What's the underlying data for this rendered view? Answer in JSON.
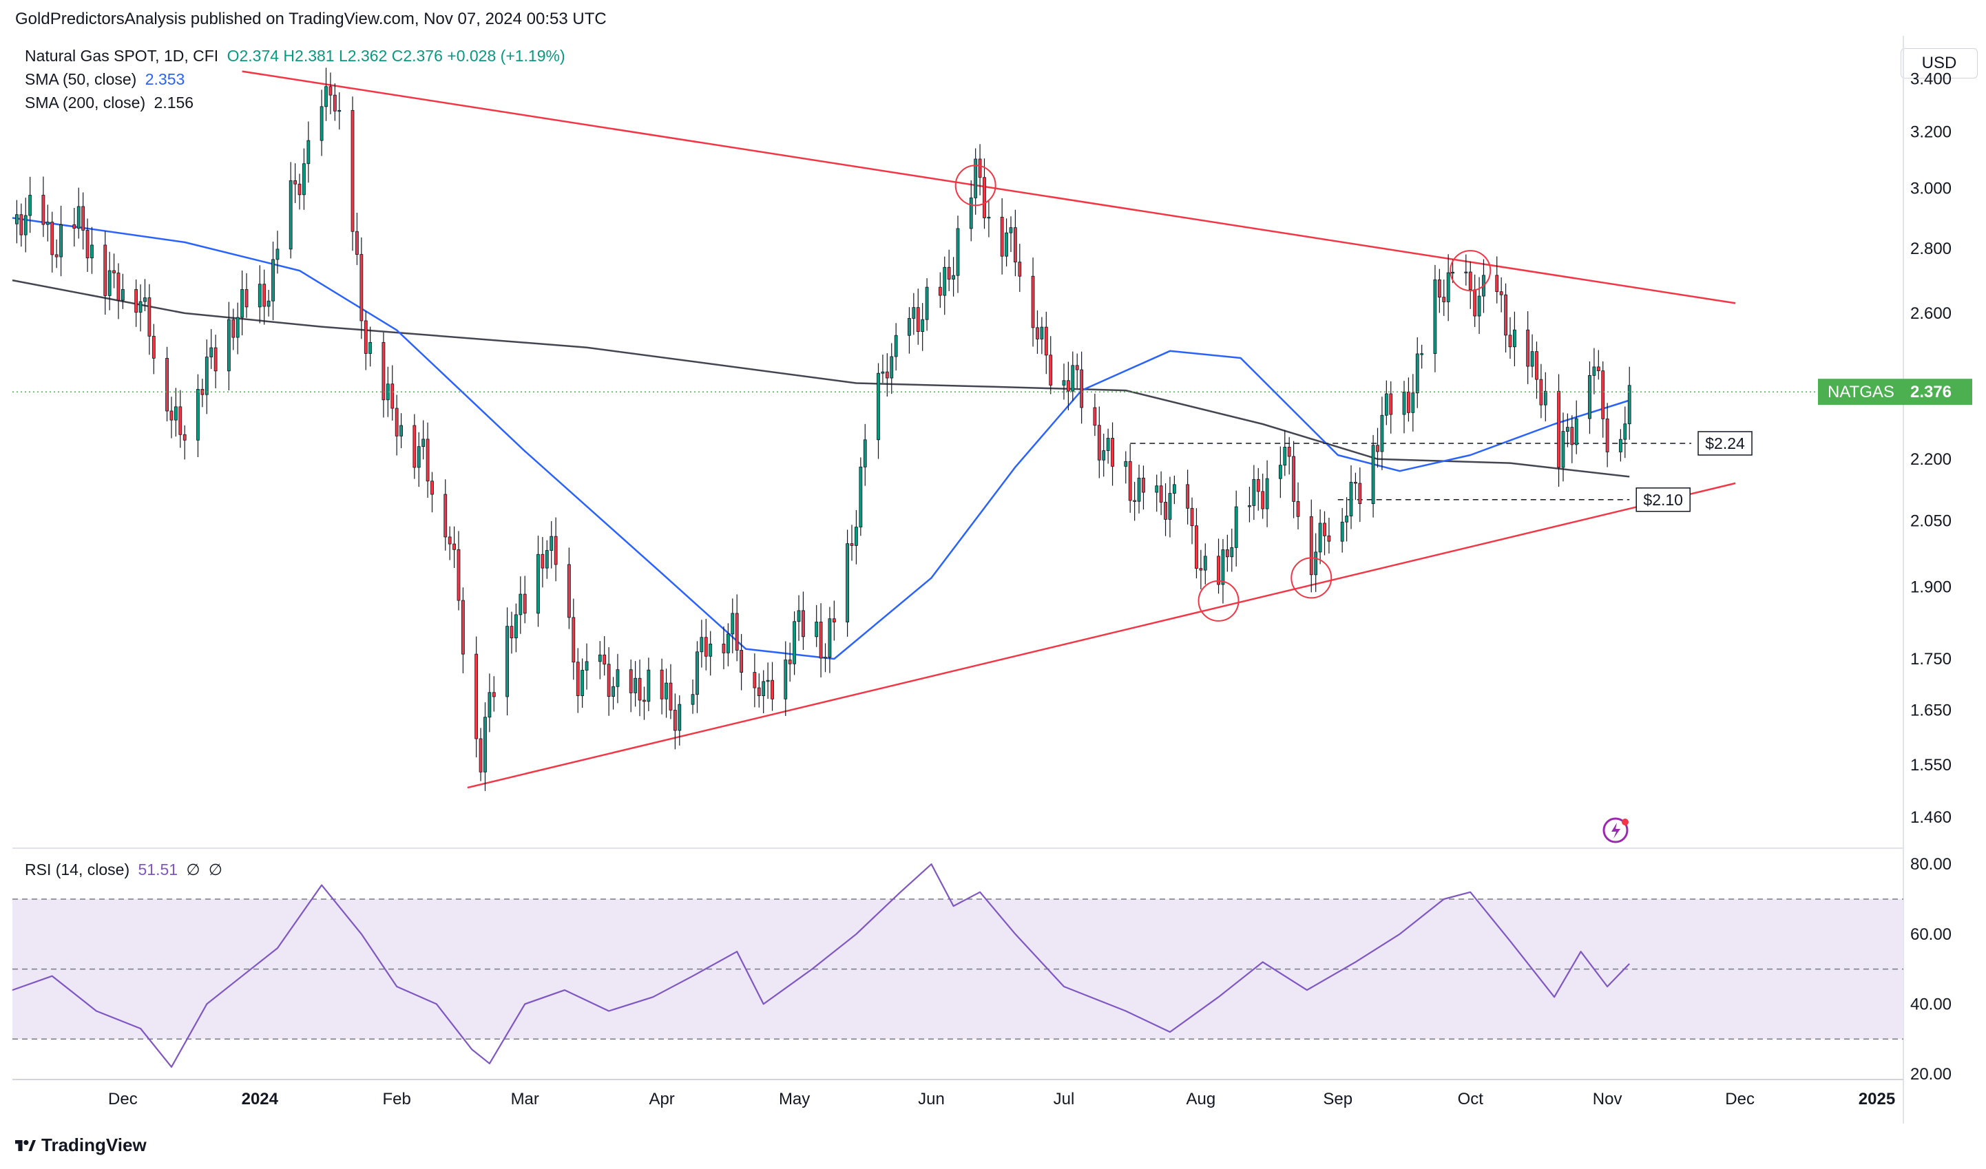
{
  "header": {
    "publisher": "GoldPredictorsAnalysis published on TradingView.com, Nov 07, 2024 00:53 UTC",
    "symbol": "Natural Gas SPOT, 1D, CFI",
    "ohlc": "O2.374  H2.381  L2.362  C2.376  +0.028 (+1.19%)",
    "sma50_label": "SMA (50, close)",
    "sma50_value": "2.353",
    "sma200_label": "SMA (200, close)",
    "sma200_value": "2.156",
    "currency": "USD"
  },
  "footer": {
    "brand": "TradingView"
  },
  "colors": {
    "up": "#089981",
    "down": "#f23645",
    "sma50": "#2962ff",
    "sma200": "#434651",
    "trend": "#f23645",
    "rsi": "#7e57c2",
    "rsi_band": "#ede7f6",
    "badge": "#4caf50"
  },
  "chart_data": [
    {
      "type": "candlestick",
      "title": "Natural Gas SPOT, 1D, CFI",
      "ylabel": "USD",
      "y_scale": "log",
      "ylim": [
        1.42,
        3.55
      ],
      "y_ticks": [
        3.4,
        3.2,
        3.0,
        2.8,
        2.6,
        2.2,
        2.05,
        1.9,
        1.75,
        1.65,
        1.55,
        1.46
      ],
      "y_tick_labels": [
        "3.400",
        "3.200",
        "3.000",
        "2.800",
        "2.600",
        "2.200",
        "2.050",
        "1.900",
        "1.750",
        "1.650",
        "1.550",
        "1.460"
      ],
      "x_tick_labels": [
        "Dec",
        "2024",
        "Feb",
        "Mar",
        "Apr",
        "May",
        "Jun",
        "Jul",
        "Aug",
        "Sep",
        "Oct",
        "Nov",
        "Dec",
        "2025"
      ],
      "x_tick_dates": [
        "2023-12-01",
        "2024-01-01",
        "2024-02-01",
        "2024-03-01",
        "2024-04-01",
        "2024-05-01",
        "2024-06-01",
        "2024-07-01",
        "2024-08-01",
        "2024-09-01",
        "2024-10-01",
        "2024-11-01",
        "2024-12-01",
        "2025-01-01"
      ],
      "x_range": [
        "2023-11-06",
        "2025-01-07"
      ],
      "price_points": [
        [
          "2023-11-06",
          2.88
        ],
        [
          "2023-11-20",
          2.85
        ],
        [
          "2023-12-01",
          2.68
        ],
        [
          "2023-12-08",
          2.55
        ],
        [
          "2023-12-14",
          2.22
        ],
        [
          "2023-12-20",
          2.48
        ],
        [
          "2023-12-27",
          2.56
        ],
        [
          "2024-01-05",
          2.76
        ],
        [
          "2024-01-11",
          3.08
        ],
        [
          "2024-01-17",
          3.39
        ],
        [
          "2024-01-24",
          2.62
        ],
        [
          "2024-01-31",
          2.28
        ],
        [
          "2024-02-07",
          2.24
        ],
        [
          "2024-02-13",
          1.98
        ],
        [
          "2024-02-20",
          1.58
        ],
        [
          "2024-02-27",
          1.83
        ],
        [
          "2024-03-06",
          1.98
        ],
        [
          "2024-03-13",
          1.74
        ],
        [
          "2024-03-20",
          1.69
        ],
        [
          "2024-03-27",
          1.7
        ],
        [
          "2024-04-03",
          1.65
        ],
        [
          "2024-04-10",
          1.75
        ],
        [
          "2024-04-17",
          1.83
        ],
        [
          "2024-04-24",
          1.65
        ],
        [
          "2024-05-01",
          1.83
        ],
        [
          "2024-05-08",
          1.76
        ],
        [
          "2024-05-15",
          2.06
        ],
        [
          "2024-05-22",
          2.5
        ],
        [
          "2024-05-29",
          2.55
        ],
        [
          "2024-06-05",
          2.75
        ],
        [
          "2024-06-11",
          3.01
        ],
        [
          "2024-06-18",
          2.85
        ],
        [
          "2024-06-25",
          2.55
        ],
        [
          "2024-07-02",
          2.4
        ],
        [
          "2024-07-09",
          2.28
        ],
        [
          "2024-07-16",
          2.1
        ],
        [
          "2024-07-23",
          2.12
        ],
        [
          "2024-07-30",
          2.01
        ],
        [
          "2024-08-05",
          1.9
        ],
        [
          "2024-08-12",
          2.12
        ],
        [
          "2024-08-19",
          2.2
        ],
        [
          "2024-08-26",
          2.0
        ],
        [
          "2024-09-02",
          2.05
        ],
        [
          "2024-09-09",
          2.25
        ],
        [
          "2024-09-16",
          2.35
        ],
        [
          "2024-09-23",
          2.62
        ],
        [
          "2024-09-30",
          2.71
        ],
        [
          "2024-10-07",
          2.6
        ],
        [
          "2024-10-14",
          2.48
        ],
        [
          "2024-10-21",
          2.21
        ],
        [
          "2024-10-28",
          2.46
        ],
        [
          "2024-11-01",
          2.24
        ],
        [
          "2024-11-06",
          2.376
        ]
      ],
      "sma50_points": [
        [
          "2023-11-06",
          2.9
        ],
        [
          "2023-12-15",
          2.82
        ],
        [
          "2024-01-10",
          2.73
        ],
        [
          "2024-02-01",
          2.55
        ],
        [
          "2024-03-01",
          2.22
        ],
        [
          "2024-04-01",
          1.93
        ],
        [
          "2024-04-20",
          1.77
        ],
        [
          "2024-05-10",
          1.75
        ],
        [
          "2024-06-01",
          1.92
        ],
        [
          "2024-06-20",
          2.18
        ],
        [
          "2024-07-05",
          2.38
        ],
        [
          "2024-07-25",
          2.49
        ],
        [
          "2024-08-10",
          2.47
        ],
        [
          "2024-09-01",
          2.21
        ],
        [
          "2024-09-15",
          2.17
        ],
        [
          "2024-10-01",
          2.21
        ],
        [
          "2024-10-20",
          2.29
        ],
        [
          "2024-11-06",
          2.353
        ]
      ],
      "sma200_points": [
        [
          "2023-11-06",
          2.7
        ],
        [
          "2023-12-15",
          2.6
        ],
        [
          "2024-01-15",
          2.56
        ],
        [
          "2024-03-15",
          2.5
        ],
        [
          "2024-05-15",
          2.4
        ],
        [
          "2024-06-15",
          2.39
        ],
        [
          "2024-07-15",
          2.38
        ],
        [
          "2024-08-15",
          2.29
        ],
        [
          "2024-09-10",
          2.2
        ],
        [
          "2024-10-10",
          2.19
        ],
        [
          "2024-11-06",
          2.156
        ]
      ],
      "trendlines": [
        {
          "name": "descending-resistance",
          "from": [
            "2023-12-28",
            3.43
          ],
          "to": [
            "2024-11-30",
            2.63
          ]
        },
        {
          "name": "ascending-support",
          "from": [
            "2024-02-17",
            1.51
          ],
          "to": [
            "2024-11-30",
            2.14
          ]
        }
      ],
      "levels": [
        {
          "label": "$2.24",
          "value": 2.24,
          "from": "2024-07-16",
          "to": "2024-11-20"
        },
        {
          "label": "$2.10",
          "value": 2.1,
          "from": "2024-09-01",
          "to": "2024-11-06"
        }
      ],
      "markers": [
        {
          "date": "2024-06-11",
          "price": 3.01
        },
        {
          "date": "2024-10-01",
          "price": 2.73
        },
        {
          "date": "2024-08-05",
          "price": 1.87
        },
        {
          "date": "2024-08-26",
          "price": 1.92
        }
      ],
      "last_price": {
        "label": "NATGAS",
        "value": 2.376
      }
    },
    {
      "type": "line",
      "title": "RSI (14, close)",
      "value_label": "51.51",
      "extra_labels": [
        "∅",
        "∅"
      ],
      "ylim": [
        20,
        82
      ],
      "y_ticks": [
        80,
        60,
        40,
        20
      ],
      "y_tick_labels": [
        "80.00",
        "60.00",
        "40.00",
        "20.00"
      ],
      "band": [
        30,
        70
      ],
      "midline": 50,
      "rsi_points": [
        [
          "2023-11-06",
          44
        ],
        [
          "2023-11-15",
          48
        ],
        [
          "2023-11-25",
          38
        ],
        [
          "2023-12-05",
          33
        ],
        [
          "2023-12-12",
          22
        ],
        [
          "2023-12-20",
          40
        ],
        [
          "2023-12-28",
          48
        ],
        [
          "2024-01-05",
          56
        ],
        [
          "2024-01-15",
          74
        ],
        [
          "2024-01-24",
          60
        ],
        [
          "2024-02-01",
          45
        ],
        [
          "2024-02-10",
          40
        ],
        [
          "2024-02-18",
          27
        ],
        [
          "2024-02-22",
          23
        ],
        [
          "2024-03-01",
          40
        ],
        [
          "2024-03-10",
          44
        ],
        [
          "2024-03-20",
          38
        ],
        [
          "2024-03-30",
          42
        ],
        [
          "2024-04-08",
          48
        ],
        [
          "2024-04-18",
          55
        ],
        [
          "2024-04-24",
          40
        ],
        [
          "2024-05-05",
          50
        ],
        [
          "2024-05-15",
          60
        ],
        [
          "2024-05-25",
          72
        ],
        [
          "2024-06-01",
          80
        ],
        [
          "2024-06-06",
          68
        ],
        [
          "2024-06-12",
          72
        ],
        [
          "2024-06-20",
          60
        ],
        [
          "2024-07-01",
          45
        ],
        [
          "2024-07-15",
          38
        ],
        [
          "2024-07-25",
          32
        ],
        [
          "2024-08-05",
          42
        ],
        [
          "2024-08-15",
          52
        ],
        [
          "2024-08-25",
          44
        ],
        [
          "2024-09-05",
          52
        ],
        [
          "2024-09-15",
          60
        ],
        [
          "2024-09-25",
          70
        ],
        [
          "2024-10-01",
          72
        ],
        [
          "2024-10-10",
          58
        ],
        [
          "2024-10-20",
          42
        ],
        [
          "2024-10-26",
          55
        ],
        [
          "2024-11-01",
          45
        ],
        [
          "2024-11-06",
          51.51
        ]
      ]
    }
  ]
}
